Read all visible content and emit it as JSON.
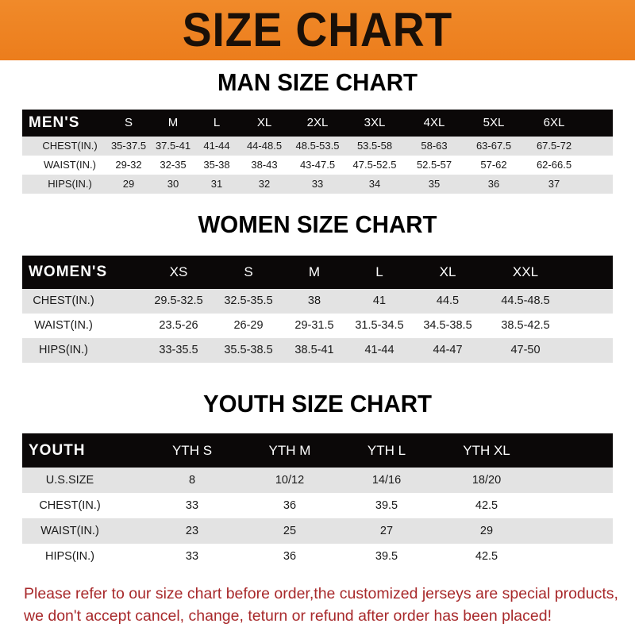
{
  "title": "SIZE CHART",
  "men": {
    "title": "MAN SIZE CHART",
    "header": [
      "MEN'S",
      "S",
      "M",
      "L",
      "XL",
      "2XL",
      "3XL",
      "4XL",
      "5XL",
      "6XL"
    ],
    "rows": [
      [
        "CHEST(IN.)",
        "35-37.5",
        "37.5-41",
        "41-44",
        "44-48.5",
        "48.5-53.5",
        "53.5-58",
        "58-63",
        "63-67.5",
        "67.5-72"
      ],
      [
        "WAIST(IN.)",
        "29-32",
        "32-35",
        "35-38",
        "38-43",
        "43-47.5",
        "47.5-52.5",
        "52.5-57",
        "57-62",
        "62-66.5"
      ],
      [
        "HIPS(IN.)",
        "29",
        "30",
        "31",
        "32",
        "33",
        "34",
        "35",
        "36",
        "37"
      ]
    ]
  },
  "women": {
    "title": "WOMEN SIZE CHART",
    "header": [
      "WOMEN'S",
      "XS",
      "S",
      "M",
      "L",
      "XL",
      "XXL"
    ],
    "rows": [
      [
        "CHEST(IN.)",
        "29.5-32.5",
        "32.5-35.5",
        "38",
        "41",
        "44.5",
        "44.5-48.5"
      ],
      [
        "WAIST(IN.)",
        "23.5-26",
        "26-29",
        "29-31.5",
        "31.5-34.5",
        "34.5-38.5",
        "38.5-42.5"
      ],
      [
        "HIPS(IN.)",
        "33-35.5",
        "35.5-38.5",
        "38.5-41",
        "41-44",
        "44-47",
        "47-50"
      ]
    ]
  },
  "youth": {
    "title": "YOUTH SIZE CHART",
    "header": [
      "YOUTH",
      "YTH S",
      "YTH M",
      "YTH L",
      "YTH XL"
    ],
    "rows": [
      [
        "U.S.SIZE",
        "8",
        "10/12",
        "14/16",
        "18/20"
      ],
      [
        "CHEST(IN.)",
        "33",
        "36",
        "39.5",
        "42.5"
      ],
      [
        "WAIST(IN.)",
        "23",
        "25",
        "27",
        "29"
      ],
      [
        "HIPS(IN.)",
        "33",
        "36",
        "39.5",
        "42.5"
      ]
    ]
  },
  "footer": {
    "line1": "Please refer to our size chart before order,the customized jerseys are special products,",
    "line2": "we don't accept cancel, change, teturn or refund after order has been placed!"
  },
  "colors": {
    "banner": "#ec7d1c",
    "header_row": "#0b0808",
    "stripe": "#e3e3e3",
    "notice_text": "#a8292b"
  }
}
